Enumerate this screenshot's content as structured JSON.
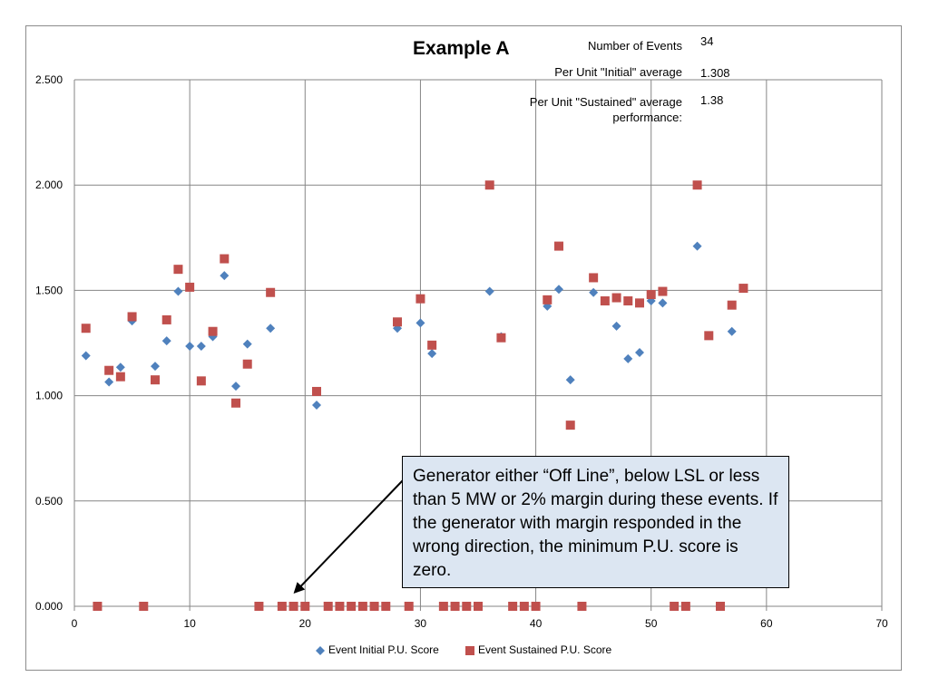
{
  "chart_data": {
    "type": "scatter",
    "title": "Example A",
    "xlim": [
      0,
      70
    ],
    "ylim": [
      0,
      2.5
    ],
    "x_ticks": [
      0,
      10,
      20,
      30,
      40,
      50,
      60,
      70
    ],
    "y_ticks": [
      "0.000",
      "0.500",
      "1.000",
      "1.500",
      "2.000",
      "2.500"
    ],
    "grid": true,
    "legend_position": "bottom",
    "series": [
      {
        "name": "Event Initial P.U. Score",
        "color": "#4f81bd",
        "marker": "diamond",
        "x": [
          1,
          3,
          4,
          5,
          7,
          8,
          9,
          10,
          11,
          12,
          13,
          14,
          15,
          17,
          21,
          28,
          30,
          31,
          36,
          37,
          41,
          42,
          43,
          45,
          47,
          48,
          49,
          50,
          51,
          54,
          57,
          58
        ],
        "y": [
          1.19,
          1.065,
          1.135,
          1.355,
          1.14,
          1.26,
          1.495,
          1.235,
          1.235,
          1.28,
          1.57,
          1.045,
          1.245,
          1.32,
          0.955,
          1.32,
          1.345,
          1.2,
          1.495,
          1.28,
          1.425,
          1.505,
          1.075,
          1.49,
          1.33,
          1.175,
          1.205,
          1.45,
          1.44,
          1.71,
          1.305,
          1.51
        ]
      },
      {
        "name": "Event Sustained P.U. Score",
        "color": "#c0504d",
        "marker": "square",
        "x": [
          1,
          2,
          3,
          4,
          5,
          6,
          7,
          8,
          9,
          10,
          11,
          12,
          13,
          14,
          15,
          16,
          17,
          18,
          19,
          20,
          21,
          22,
          23,
          24,
          25,
          26,
          27,
          28,
          29,
          30,
          31,
          32,
          33,
          34,
          35,
          36,
          37,
          38,
          39,
          40,
          41,
          42,
          43,
          44,
          45,
          46,
          47,
          48,
          49,
          50,
          51,
          52,
          53,
          54,
          55,
          56,
          57,
          58
        ],
        "y": [
          1.32,
          0,
          1.12,
          1.09,
          1.375,
          0,
          1.075,
          1.36,
          1.6,
          1.515,
          1.07,
          1.305,
          1.65,
          0.965,
          1.15,
          0,
          1.49,
          0,
          0,
          0,
          1.02,
          0,
          0,
          0,
          0,
          0,
          0,
          1.35,
          0,
          1.46,
          1.24,
          0,
          0,
          0,
          0,
          2.0,
          1.275,
          0,
          0,
          0,
          1.455,
          1.71,
          0.86,
          0,
          1.56,
          1.45,
          1.465,
          1.45,
          1.44,
          1.48,
          1.495,
          0,
          0,
          2.0,
          1.285,
          0,
          1.43,
          1.51
        ]
      }
    ]
  },
  "stats": {
    "events_label": "Number of Events",
    "events_value": "34",
    "initial_label": "Per Unit \"Initial\" average",
    "initial_value": "1.308",
    "sustained_label": "Per Unit \"Sustained\" average performance:",
    "sustained_value": "1.38"
  },
  "callout": {
    "text": "Generator either “Off Line”, below LSL or less than 5 MW or 2% margin during these events.  If the generator with margin responded in the wrong direction, the minimum P.U. score is zero.",
    "arrow_target": {
      "x": 19,
      "y": 0
    }
  }
}
